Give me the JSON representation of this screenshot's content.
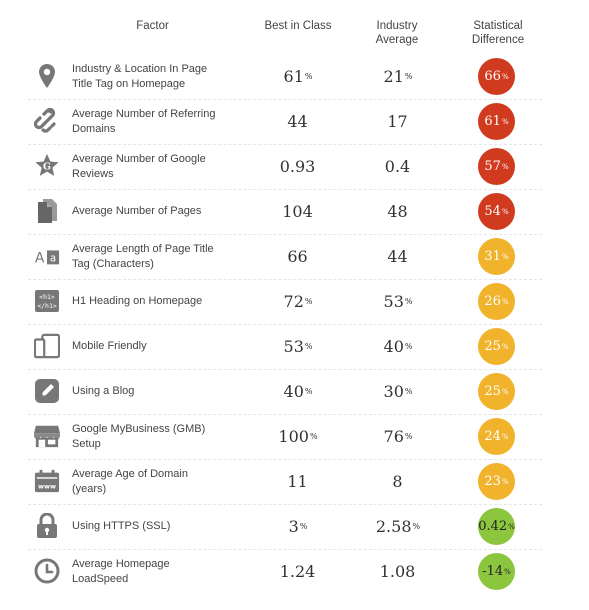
{
  "headers": {
    "factor": "Factor",
    "best": "Best in Class",
    "industry_l1": "Industry",
    "industry_l2": "Average",
    "stat_l1": "Statistical",
    "stat_l2": "Difference"
  },
  "colors": {
    "red": "#d03a1f",
    "yellow": "#f0b32b",
    "green": "#8cc63f"
  },
  "rows": [
    {
      "icon": "map-pin-icon",
      "label_l1": "Industry & Location In Page",
      "label_l2": "Title Tag on Homepage",
      "best": "61",
      "best_unit": "%",
      "industry": "21",
      "industry_unit": "%",
      "diff": "66",
      "diff_unit": "%",
      "color": "red"
    },
    {
      "icon": "link-icon",
      "label_l1": "Average Number of Referring",
      "label_l2": "Domains",
      "best": "44",
      "best_unit": "",
      "industry": "17",
      "industry_unit": "",
      "diff": "61",
      "diff_unit": "%",
      "color": "red"
    },
    {
      "icon": "google-star-icon",
      "label_l1": "Average Number of Google",
      "label_l2": "Reviews",
      "best": "0.93",
      "best_unit": "",
      "industry": "0.4",
      "industry_unit": "",
      "diff": "57",
      "diff_unit": "%",
      "color": "red"
    },
    {
      "icon": "pages-icon",
      "label_l1": "Average Number of Pages",
      "label_l2": "",
      "best": "104",
      "best_unit": "",
      "industry": "48",
      "industry_unit": "",
      "diff": "54",
      "diff_unit": "%",
      "color": "red"
    },
    {
      "icon": "text-size-icon",
      "label_l1": "Average Length of Page Title",
      "label_l2": "Tag (Characters)",
      "best": "66",
      "best_unit": "",
      "industry": "44",
      "industry_unit": "",
      "diff": "31",
      "diff_unit": "%",
      "color": "yellow"
    },
    {
      "icon": "h1-tag-icon",
      "label_l1": "H1 Heading on Homepage",
      "label_l2": "",
      "best": "72",
      "best_unit": "%",
      "industry": "53",
      "industry_unit": "%",
      "diff": "26",
      "diff_unit": "%",
      "color": "yellow"
    },
    {
      "icon": "mobile-devices-icon",
      "label_l1": "Mobile Friendly",
      "label_l2": "",
      "best": "53",
      "best_unit": "%",
      "industry": "40",
      "industry_unit": "%",
      "diff": "25",
      "diff_unit": "%",
      "color": "yellow"
    },
    {
      "icon": "pen-icon",
      "label_l1": "Using a Blog",
      "label_l2": "",
      "best": "40",
      "best_unit": "%",
      "industry": "30",
      "industry_unit": "%",
      "diff": "25",
      "diff_unit": "%",
      "color": "yellow"
    },
    {
      "icon": "storefront-icon",
      "label_l1": "Google MyBusiness (GMB)",
      "label_l2": "Setup",
      "best": "100",
      "best_unit": "%",
      "industry": "76",
      "industry_unit": "%",
      "diff": "24",
      "diff_unit": "%",
      "color": "yellow"
    },
    {
      "icon": "calendar-www-icon",
      "label_l1": "Average Age of Domain",
      "label_l2": "(years)",
      "best": "11",
      "best_unit": "",
      "industry": "8",
      "industry_unit": "",
      "diff": "23",
      "diff_unit": "%",
      "color": "yellow"
    },
    {
      "icon": "padlock-icon",
      "label_l1": "Using HTTPS (SSL)",
      "label_l2": "",
      "best": "3",
      "best_unit": "%",
      "industry": "2.58",
      "industry_unit": "%",
      "diff": "0.42",
      "diff_unit": "%",
      "color": "green"
    },
    {
      "icon": "clock-icon",
      "label_l1": "Average Homepage",
      "label_l2": "LoadSpeed",
      "best": "1.24",
      "best_unit": "",
      "industry": "1.08",
      "industry_unit": "",
      "diff": "-14",
      "diff_unit": "%",
      "color": "green"
    }
  ]
}
